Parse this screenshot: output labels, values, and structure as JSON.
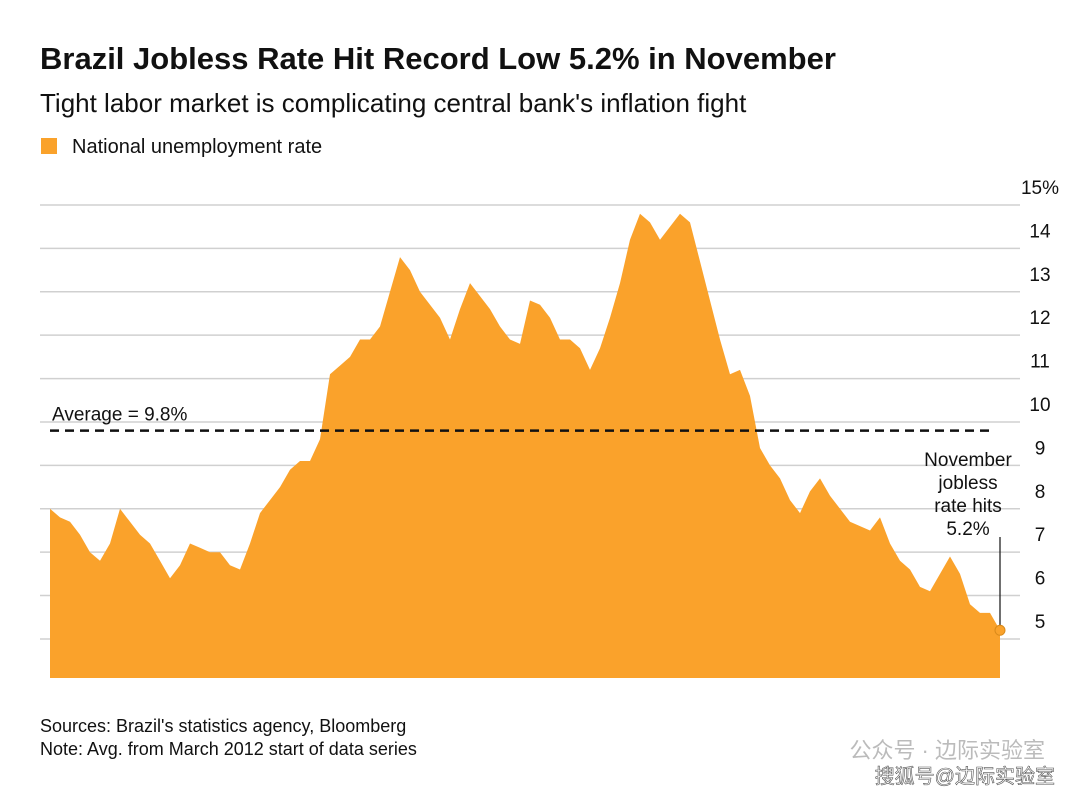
{
  "chart_data": {
    "type": "area",
    "title": "Brazil Jobless Rate Hit Record Low 5.2% in November",
    "subtitle": "Tight labor market is complicating central bank's inflation fight",
    "series": [
      {
        "name": "National unemployment rate",
        "color": "#faa22b",
        "values": [
          8.0,
          7.8,
          7.7,
          7.4,
          7.0,
          6.8,
          7.2,
          8.0,
          7.7,
          7.4,
          7.2,
          6.8,
          6.4,
          6.7,
          7.2,
          7.1,
          7.0,
          7.0,
          6.7,
          6.6,
          7.2,
          7.9,
          8.2,
          8.5,
          8.9,
          9.1,
          9.1,
          9.6,
          11.1,
          11.3,
          11.5,
          11.9,
          11.9,
          12.2,
          13.0,
          13.8,
          13.5,
          13.0,
          12.7,
          12.4,
          11.9,
          12.6,
          13.2,
          12.9,
          12.6,
          12.2,
          11.9,
          11.8,
          12.8,
          12.7,
          12.4,
          11.9,
          11.9,
          11.7,
          11.2,
          11.7,
          12.4,
          13.2,
          14.2,
          14.8,
          14.6,
          14.2,
          14.5,
          14.8,
          14.6,
          13.7,
          12.8,
          11.9,
          11.1,
          11.2,
          10.6,
          9.4,
          9.0,
          8.7,
          8.2,
          7.9,
          8.4,
          8.7,
          8.3,
          8.0,
          7.7,
          7.6,
          7.5,
          7.8,
          7.2,
          6.8,
          6.6,
          6.2,
          6.1,
          6.5,
          6.9,
          6.5,
          5.8,
          5.6,
          5.6,
          5.2
        ]
      }
    ],
    "ylim": [
      4.1,
      15
    ],
    "yticks": [
      5,
      6,
      7,
      8,
      9,
      10,
      11,
      12,
      13,
      14,
      {
        "value": 15,
        "label": "15%"
      }
    ],
    "grid": true,
    "average": {
      "label": "Average = 9.8%",
      "value": 9.8
    },
    "annotation": {
      "lines": [
        "November",
        "jobless",
        "rate hits",
        "5.2%"
      ]
    }
  },
  "footer": {
    "source": "Sources: Brazil's statistics agency, Bloomberg",
    "note": "Note: Avg. from March 2012 start of data series"
  },
  "watermark": {
    "top": "公众号 · 边际实验室",
    "bottom": "搜狐号@边际实验室"
  }
}
